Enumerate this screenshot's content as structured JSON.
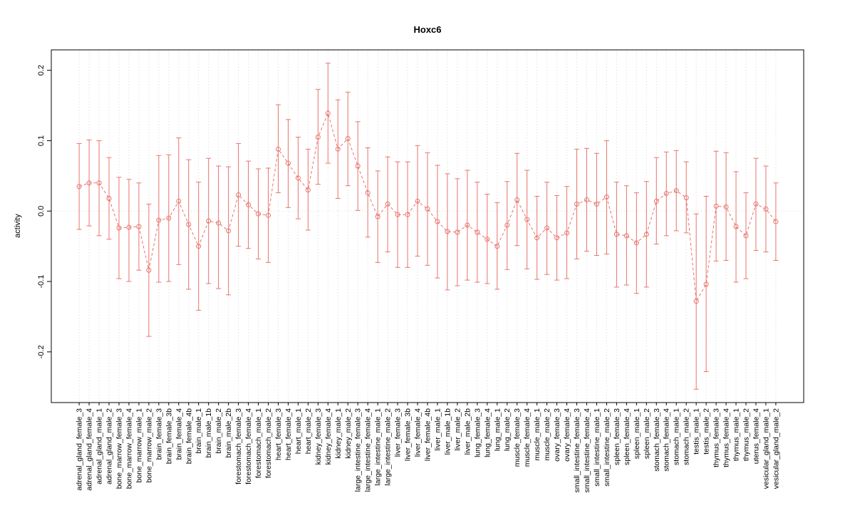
{
  "chart_data": {
    "type": "scatter",
    "title": "Hoxc6",
    "xlabel": "",
    "ylabel": "activity",
    "ylim": [
      -0.272,
      0.229
    ],
    "yticks": [
      -0.2,
      -0.1,
      0.0,
      0.1,
      0.2
    ],
    "grid": "vertical dotted line at each category; horizontal dotted line at y=0",
    "legend": "none",
    "error_bars": true,
    "point_style": "open-circle",
    "line_style": "dashed",
    "colors": {
      "series": "#e8746c",
      "grid": "#d9d9d9",
      "axis": "#000000",
      "background": "#ffffff"
    },
    "categories": [
      "adrenal_gland_female_3",
      "adrenal_gland_female_4",
      "adrenal_gland_male_1",
      "adrenal_gland_male_2",
      "bone_marrow_female_3",
      "bone_marrow_female_4",
      "bone_marrow_male_1",
      "bone_marrow_male_2",
      "brain_female_3",
      "brain_female_3b",
      "brain_female_4",
      "brain_female_4b",
      "brain_male_1",
      "brain_male_1b",
      "brain_male_2",
      "brain_male_2b",
      "forestomach_female_3",
      "forestomach_female_4",
      "forestomach_male_1",
      "forestomach_male_2",
      "heart_female_3",
      "heart_female_4",
      "heart_male_1",
      "heart_male_2",
      "kidney_female_3",
      "kidney_female_4",
      "kidney_male_1",
      "kidney_male_2",
      "large_intestine_female_3",
      "large_intestine_female_4",
      "large_intestine_male_1",
      "large_intestine_male_2",
      "liver_female_3",
      "liver_female_3b",
      "liver_female_4",
      "liver_female_4b",
      "liver_male_1",
      "liver_male_1b",
      "liver_male_2",
      "liver_male_2b",
      "lung_female_3",
      "lung_female_4",
      "lung_male_1",
      "lung_male_2",
      "muscle_female_3",
      "muscle_female_4",
      "muscle_male_1",
      "muscle_male_2",
      "ovary_female_3",
      "ovary_female_4",
      "small_intestine_female_3",
      "small_intestine_female_4",
      "small_intestine_male_1",
      "small_intestine_male_2",
      "spleen_female_3",
      "spleen_female_4",
      "spleen_male_1",
      "spleen_male_2",
      "stomach_female_3",
      "stomach_female_4",
      "stomach_male_1",
      "stomach_male_2",
      "testis_male_1",
      "testis_male_2",
      "thymus_female_3",
      "thymus_female_4",
      "thymus_male_1",
      "thymus_male_2",
      "uterus_female_4",
      "vesicular_gland_male_1",
      "vesicular_gland_male_2"
    ],
    "values": [
      0.035,
      0.04,
      0.04,
      0.018,
      -0.024,
      -0.023,
      -0.022,
      -0.084,
      -0.013,
      -0.01,
      0.014,
      -0.019,
      -0.05,
      -0.014,
      -0.017,
      -0.028,
      0.023,
      0.009,
      -0.004,
      -0.006,
      0.088,
      0.068,
      0.047,
      0.03,
      0.105,
      0.139,
      0.088,
      0.103,
      0.064,
      0.026,
      -0.008,
      0.01,
      -0.005,
      -0.005,
      0.014,
      0.003,
      -0.015,
      -0.029,
      -0.03,
      -0.02,
      -0.03,
      -0.04,
      -0.05,
      -0.02,
      0.016,
      -0.012,
      -0.038,
      -0.024,
      -0.038,
      -0.031,
      0.01,
      0.016,
      0.01,
      0.02,
      -0.033,
      -0.035,
      -0.045,
      -0.033,
      0.014,
      0.025,
      0.029,
      0.019,
      -0.128,
      -0.104,
      0.007,
      0.006,
      -0.022,
      -0.035,
      0.01,
      0.003,
      -0.015
    ],
    "error_low": [
      -0.026,
      -0.021,
      -0.035,
      -0.04,
      -0.096,
      -0.1,
      -0.084,
      -0.178,
      -0.101,
      -0.1,
      -0.076,
      -0.111,
      -0.141,
      -0.103,
      -0.11,
      -0.119,
      -0.05,
      -0.053,
      -0.068,
      -0.073,
      0.026,
      0.005,
      -0.011,
      -0.027,
      0.038,
      0.068,
      0.018,
      0.036,
      0.001,
      -0.037,
      -0.073,
      -0.058,
      -0.08,
      -0.08,
      -0.064,
      -0.077,
      -0.095,
      -0.112,
      -0.106,
      -0.098,
      -0.101,
      -0.103,
      -0.111,
      -0.083,
      -0.049,
      -0.082,
      -0.097,
      -0.09,
      -0.098,
      -0.096,
      -0.068,
      -0.057,
      -0.063,
      -0.061,
      -0.108,
      -0.105,
      -0.117,
      -0.108,
      -0.047,
      -0.035,
      -0.028,
      -0.031,
      -0.253,
      -0.228,
      -0.071,
      -0.07,
      -0.101,
      -0.096,
      -0.056,
      -0.058,
      -0.07
    ],
    "error_high": [
      0.096,
      0.101,
      0.1,
      0.076,
      0.048,
      0.045,
      0.04,
      0.01,
      0.079,
      0.08,
      0.104,
      0.073,
      0.041,
      0.075,
      0.064,
      0.063,
      0.096,
      0.071,
      0.06,
      0.061,
      0.151,
      0.13,
      0.105,
      0.088,
      0.173,
      0.21,
      0.158,
      0.169,
      0.127,
      0.09,
      0.057,
      0.077,
      0.07,
      0.07,
      0.093,
      0.083,
      0.065,
      0.053,
      0.046,
      0.058,
      0.041,
      0.024,
      0.012,
      0.042,
      0.082,
      0.058,
      0.021,
      0.041,
      0.022,
      0.035,
      0.088,
      0.089,
      0.082,
      0.1,
      0.041,
      0.036,
      0.026,
      0.042,
      0.076,
      0.084,
      0.086,
      0.07,
      -0.004,
      0.021,
      0.085,
      0.083,
      0.056,
      0.026,
      0.075,
      0.064,
      0.04
    ]
  }
}
